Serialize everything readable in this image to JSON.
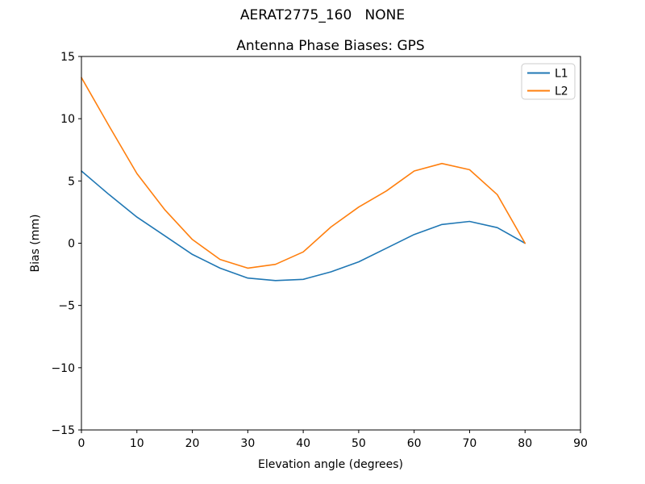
{
  "chart_data": {
    "type": "line",
    "suptitle": "AERAT2775_160   NONE",
    "title": "Antenna Phase Biases: GPS",
    "xlabel": "Elevation angle (degrees)",
    "ylabel": "Bias (mm)",
    "xlim": [
      0,
      90
    ],
    "ylim": [
      -15,
      15
    ],
    "xticks": [
      0,
      10,
      20,
      30,
      40,
      50,
      60,
      70,
      80,
      90
    ],
    "yticks": [
      -15,
      -10,
      -5,
      0,
      5,
      10,
      15
    ],
    "grid": false,
    "legend_position": "upper right",
    "x": [
      0,
      5,
      10,
      15,
      20,
      25,
      30,
      35,
      40,
      45,
      50,
      55,
      60,
      65,
      70,
      75,
      80
    ],
    "series": [
      {
        "name": "L1",
        "color": "#1f77b4",
        "values": [
          5.8,
          3.9,
          2.1,
          0.6,
          -0.9,
          -2.0,
          -2.8,
          -3.0,
          -2.9,
          -2.3,
          -1.5,
          -0.4,
          0.7,
          1.5,
          1.75,
          1.25,
          0.0
        ]
      },
      {
        "name": "L2",
        "color": "#ff7f0e",
        "values": [
          13.3,
          9.4,
          5.6,
          2.7,
          0.3,
          -1.3,
          -2.0,
          -1.7,
          -0.7,
          1.3,
          2.9,
          4.2,
          5.8,
          6.4,
          5.9,
          3.9,
          0.0
        ]
      }
    ],
    "frame_color": "#000000",
    "legend_border_color": "#cccccc"
  }
}
